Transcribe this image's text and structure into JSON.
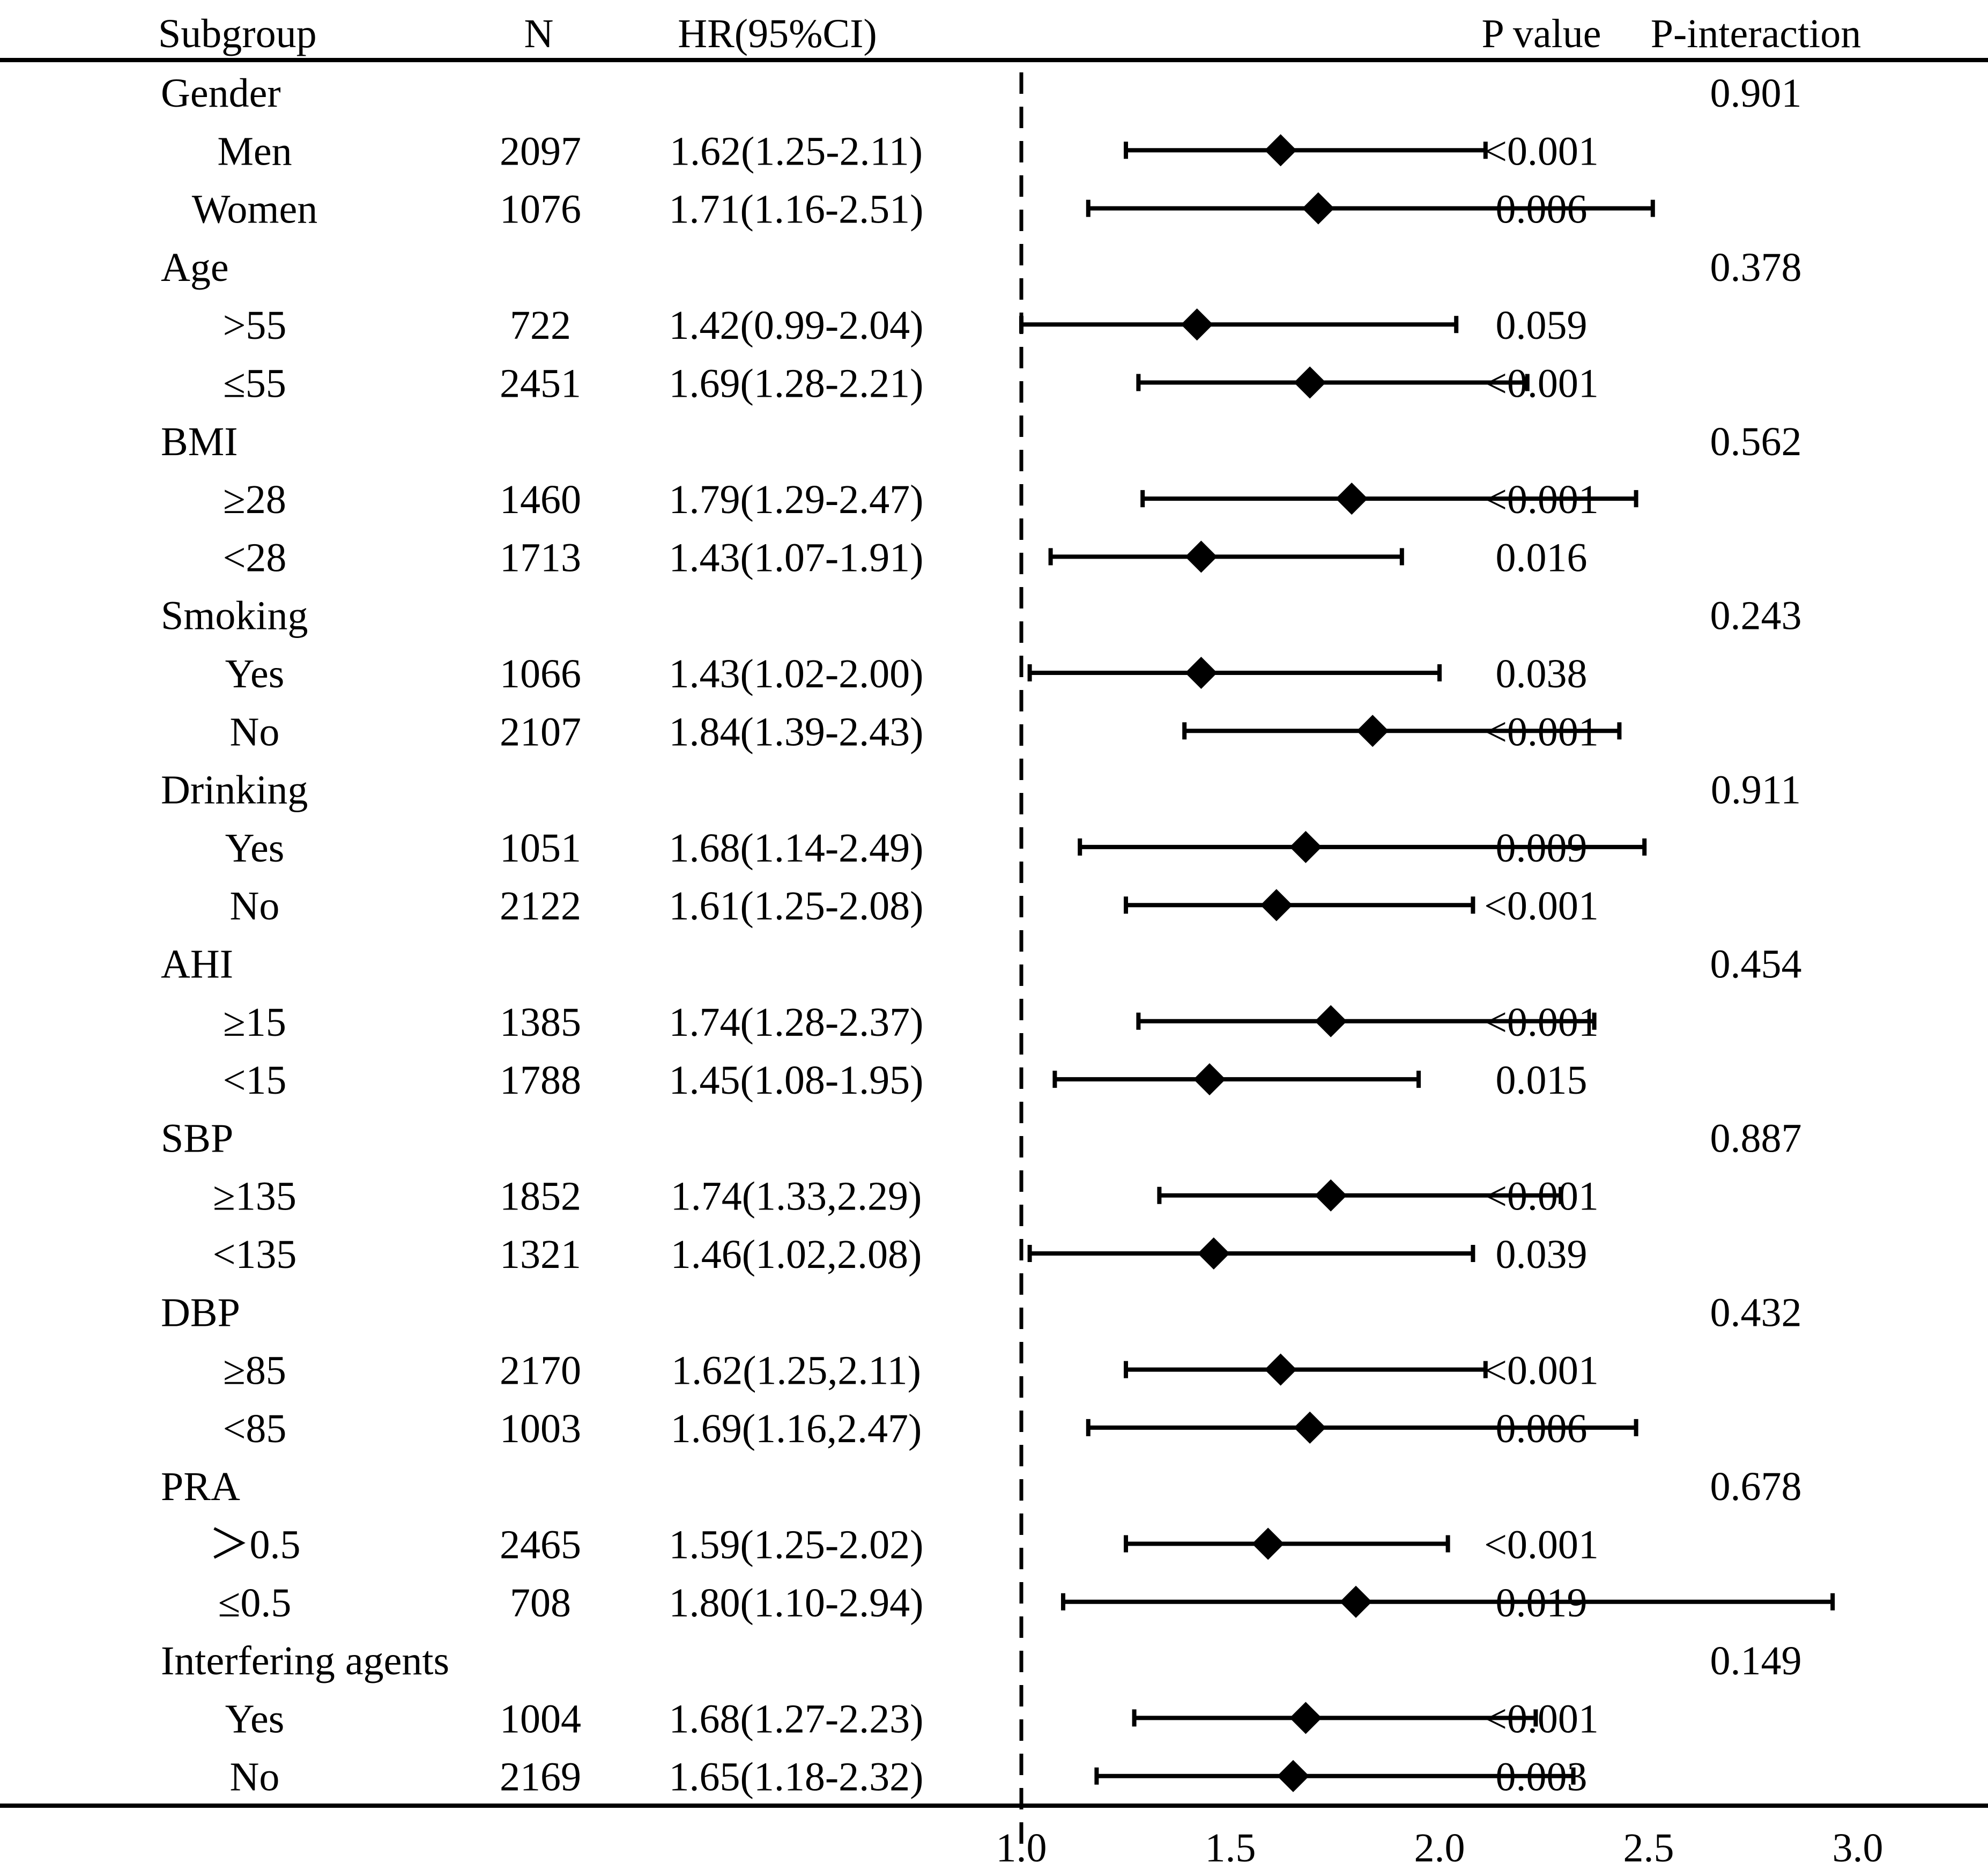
{
  "chart_data": {
    "type": "forest",
    "columns": {
      "subgroup": "Subgroup",
      "n": "N",
      "hr": "HR(95%CI)",
      "p_value": "P value",
      "p_interaction": "P-interaction"
    },
    "reference_line": 1.0,
    "xlim": [
      1.0,
      3.0
    ],
    "xticks": [
      "1.0",
      "1.5",
      "2.0",
      "2.5",
      "3.0"
    ],
    "groups": [
      {
        "label": "Gender",
        "p_interaction": "0.901",
        "rows": [
          {
            "label": "Men",
            "n": "2097",
            "hr_text": "1.62(1.25-2.11)",
            "hr": 1.62,
            "lo": 1.25,
            "hi": 2.11,
            "p": "<0.001"
          },
          {
            "label": "Women",
            "n": "1076",
            "hr_text": "1.71(1.16-2.51)",
            "hr": 1.71,
            "lo": 1.16,
            "hi": 2.51,
            "p": "0.006"
          }
        ]
      },
      {
        "label": "Age",
        "p_interaction": "0.378",
        "rows": [
          {
            "label": ">55",
            "n": "722",
            "hr_text": "1.42(0.99-2.04)",
            "hr": 1.42,
            "lo": 0.99,
            "hi": 2.04,
            "p": "0.059"
          },
          {
            "label": "≤55",
            "n": "2451",
            "hr_text": "1.69(1.28-2.21)",
            "hr": 1.69,
            "lo": 1.28,
            "hi": 2.21,
            "p": "<0.001"
          }
        ]
      },
      {
        "label": "BMI",
        "p_interaction": "0.562",
        "rows": [
          {
            "label": "≥28",
            "n": "1460",
            "hr_text": "1.79(1.29-2.47)",
            "hr": 1.79,
            "lo": 1.29,
            "hi": 2.47,
            "p": "<0.001"
          },
          {
            "label": "<28",
            "n": "1713",
            "hr_text": "1.43(1.07-1.91)",
            "hr": 1.43,
            "lo": 1.07,
            "hi": 1.91,
            "p": "0.016"
          }
        ]
      },
      {
        "label": "Smoking",
        "p_interaction": "0.243",
        "rows": [
          {
            "label": "Yes",
            "n": "1066",
            "hr_text": "1.43(1.02-2.00)",
            "hr": 1.43,
            "lo": 1.02,
            "hi": 2.0,
            "p": "0.038"
          },
          {
            "label": "No",
            "n": "2107",
            "hr_text": "1.84(1.39-2.43)",
            "hr": 1.84,
            "lo": 1.39,
            "hi": 2.43,
            "p": "<0.001"
          }
        ]
      },
      {
        "label": "Drinking",
        "p_interaction": "0.911",
        "rows": [
          {
            "label": "Yes",
            "n": "1051",
            "hr_text": "1.68(1.14-2.49)",
            "hr": 1.68,
            "lo": 1.14,
            "hi": 2.49,
            "p": "0.009"
          },
          {
            "label": "No",
            "n": "2122",
            "hr_text": "1.61(1.25-2.08)",
            "hr": 1.61,
            "lo": 1.25,
            "hi": 2.08,
            "p": "<0.001"
          }
        ]
      },
      {
        "label": "AHI",
        "p_interaction": "0.454",
        "rows": [
          {
            "label": "≥15",
            "n": "1385",
            "hr_text": "1.74(1.28-2.37)",
            "hr": 1.74,
            "lo": 1.28,
            "hi": 2.37,
            "p": "<0.001"
          },
          {
            "label": "<15",
            "n": "1788",
            "hr_text": "1.45(1.08-1.95)",
            "hr": 1.45,
            "lo": 1.08,
            "hi": 1.95,
            "p": "0.015"
          }
        ]
      },
      {
        "label": "SBP",
        "p_interaction": "0.887",
        "rows": [
          {
            "label": "≥135",
            "n": "1852",
            "hr_text": "1.74(1.33,2.29)",
            "hr": 1.74,
            "lo": 1.33,
            "hi": 2.29,
            "p": "<0.001"
          },
          {
            "label": "<135",
            "n": "1321",
            "hr_text": "1.46(1.02,2.08)",
            "hr": 1.46,
            "lo": 1.02,
            "hi": 2.08,
            "p": "0.039"
          }
        ]
      },
      {
        "label": "DBP",
        "p_interaction": "0.432",
        "rows": [
          {
            "label": "≥85",
            "n": "2170",
            "hr_text": "1.62(1.25,2.11)",
            "hr": 1.62,
            "lo": 1.25,
            "hi": 2.11,
            "p": "<0.001"
          },
          {
            "label": "<85",
            "n": "1003",
            "hr_text": "1.69(1.16,2.47)",
            "hr": 1.69,
            "lo": 1.16,
            "hi": 2.47,
            "p": "0.006"
          }
        ]
      },
      {
        "label": "PRA",
        "p_interaction": "0.678",
        "rows": [
          {
            "label": "＞0.5",
            "n": "2465",
            "hr_text": "1.59(1.25-2.02)",
            "hr": 1.59,
            "lo": 1.25,
            "hi": 2.02,
            "p": "<0.001"
          },
          {
            "label": "≤0.5",
            "n": "708",
            "hr_text": "1.80(1.10-2.94)",
            "hr": 1.8,
            "lo": 1.1,
            "hi": 2.94,
            "p": "0.019"
          }
        ]
      },
      {
        "label": "Interfering agents",
        "p_interaction": "0.149",
        "rows": [
          {
            "label": "Yes",
            "n": "1004",
            "hr_text": "1.68(1.27-2.23)",
            "hr": 1.68,
            "lo": 1.27,
            "hi": 2.23,
            "p": "<0.001"
          },
          {
            "label": "No",
            "n": "2169",
            "hr_text": "1.65(1.18-2.32)",
            "hr": 1.65,
            "lo": 1.18,
            "hi": 2.32,
            "p": "0.003"
          }
        ]
      }
    ]
  }
}
